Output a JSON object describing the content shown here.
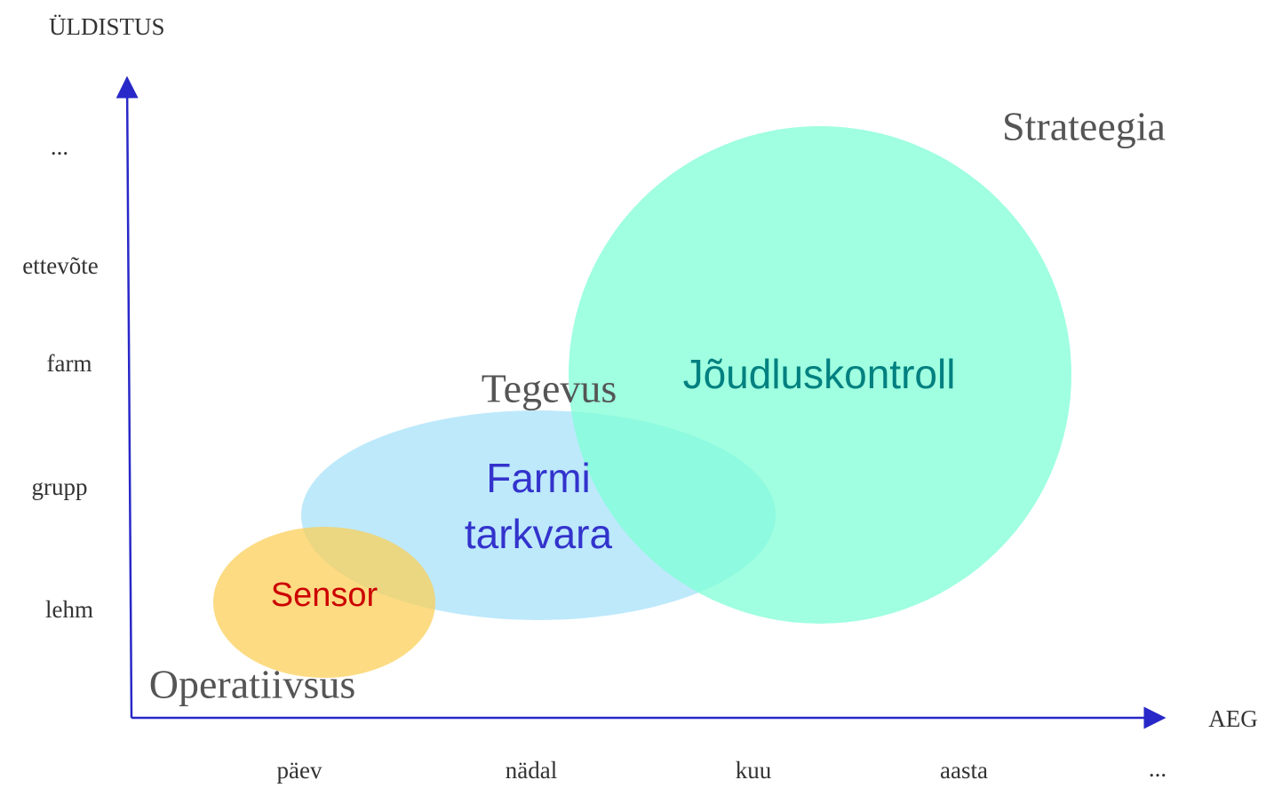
{
  "y_axis": {
    "title": "ÜLDISTUS",
    "labels": [
      "...",
      "ettevõte",
      "farm",
      "grupp",
      "lehm"
    ]
  },
  "x_axis": {
    "title": "AEG",
    "labels": [
      "päev",
      "nädal",
      "kuu",
      "aasta",
      "..."
    ]
  },
  "regions": {
    "top": "Strateegia",
    "middle": "Tegevus",
    "bottom": "Operatiivsus"
  },
  "nodes": [
    {
      "label": "Jõudluskontroll"
    },
    {
      "label": [
        "Farmi",
        "tarkvara"
      ]
    },
    {
      "label": "Sensor"
    }
  ]
}
